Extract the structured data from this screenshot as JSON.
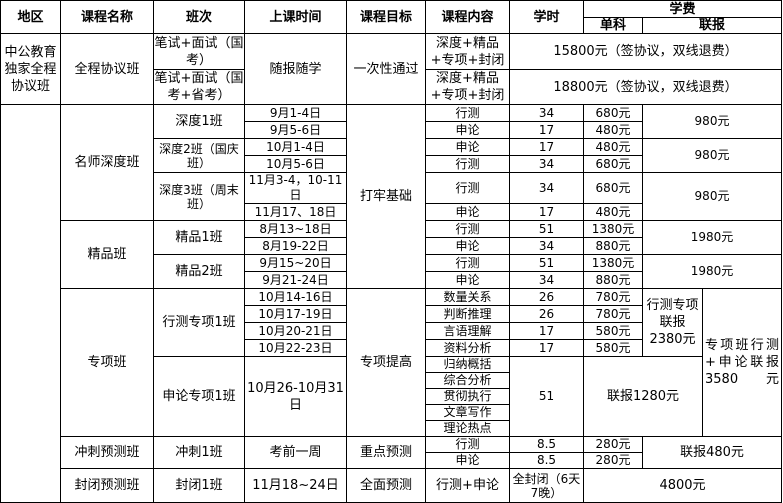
{
  "header": {
    "region": "地区",
    "course_name": "课程名称",
    "class": "班次",
    "time": "上课时间",
    "goal": "课程目标",
    "content": "课程内容",
    "hours": "学时",
    "fee": "学费",
    "single": "单科",
    "combo": "联报"
  },
  "full_course": {
    "region": "中公教育独家全程协议班",
    "name": "全程协议班",
    "classes": [
      "笔试+面试（国考）",
      "笔试+面试（国考+省考）"
    ],
    "time": "随报随学",
    "goal": "一次性通过",
    "contents": [
      "深度+精品+专项+封闭",
      "深度+精品+专项+封闭"
    ],
    "fees": [
      "15800元（签协议，双线退费）",
      "18800元（签协议，双线退费）"
    ]
  },
  "foundation_goal": "打牢基础",
  "deep": {
    "name": "名师深度班",
    "classes": [
      "深度1班",
      "深度2班（国庆班）",
      "深度3班（周末班）"
    ],
    "dates": [
      "9月1-4日",
      "9月5-6日",
      "10月1-4日",
      "10月5-6日",
      "11月3-4，10-11日",
      "11月17、18日"
    ],
    "contents": [
      "行测",
      "申论",
      "申论",
      "行测",
      "行测",
      "申论"
    ],
    "hours": [
      "34",
      "17",
      "17",
      "34",
      "34",
      "17"
    ],
    "single": [
      "680元",
      "480元",
      "480元",
      "680元",
      "680元",
      "480元"
    ],
    "combo": [
      "980元",
      "980元",
      "980元"
    ]
  },
  "premium": {
    "name": "精品班",
    "classes": [
      "精品1班",
      "精品2班"
    ],
    "dates": [
      "8月13~18日",
      "8月19-22日",
      "9月15~20日",
      "9月21-24日"
    ],
    "contents": [
      "行测",
      "申论",
      "行测",
      "申论"
    ],
    "hours": [
      "51",
      "34",
      "51",
      "34"
    ],
    "single": [
      "1380元",
      "880元",
      "1380元",
      "880元"
    ],
    "combo": [
      "1980元",
      "1980元"
    ]
  },
  "special": {
    "name": "专项班",
    "classes": [
      "行测专项1班",
      "申论专项1班"
    ],
    "dates": [
      "10月14-16日",
      "10月17-19日",
      "10月20-21日",
      "10月22-23日",
      "10月26-10月31日"
    ],
    "goal": "专项提高",
    "contents": [
      "数量关系",
      "判断推理",
      "言语理解",
      "资料分析",
      "归纳概括",
      "综合分析",
      "贯彻执行",
      "文章写作",
      "理论热点"
    ],
    "hours": [
      "26",
      "26",
      "17",
      "17",
      "51"
    ],
    "single": [
      "780元",
      "780元",
      "580元",
      "580元"
    ],
    "xingce_combo": "行测专项联报2380元",
    "shenlun_combo": "联报1280元",
    "total_combo": "专项班行测+申论联报3580元"
  },
  "sprint": {
    "name": "冲刺预测班",
    "class": "冲刺1班",
    "time": "考前一周",
    "goal": "重点预测",
    "contents": [
      "行测",
      "申论"
    ],
    "hours": [
      "8.5",
      "8.5"
    ],
    "single": [
      "280元",
      "280元"
    ],
    "combo": "联报480元"
  },
  "closed": {
    "name": "封闭预测班",
    "class": "封闭1班",
    "time": "11月18~24日",
    "goal": "全面预测",
    "content": "行测+申论",
    "hours": "全封闭（6天7晚）",
    "fee": "4800元"
  }
}
